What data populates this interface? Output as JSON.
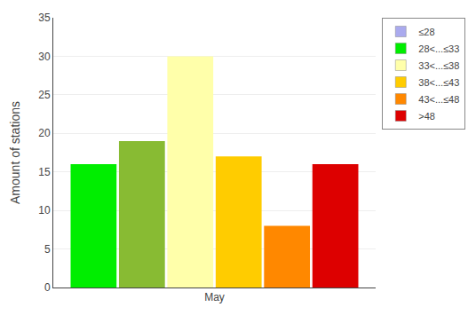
{
  "chart_data": {
    "type": "bar",
    "ylabel": "Amount of stations",
    "categories": [
      "May"
    ],
    "series": [
      {
        "color": "#00ee00",
        "values": [
          16
        ]
      },
      {
        "color": "#88bb33",
        "values": [
          19
        ]
      },
      {
        "color": "#ffffaa",
        "values": [
          30
        ]
      },
      {
        "color": "#ffcc00",
        "values": [
          17
        ]
      },
      {
        "color": "#ff8800",
        "values": [
          8
        ]
      },
      {
        "color": "#dd0000",
        "values": [
          16
        ]
      },
      {
        "name": "≤28",
        "color": "#aaaaee",
        "values": [
          null
        ]
      },
      {
        "name": "28<...≤33",
        "color": "#00ee00",
        "values": [
          null
        ]
      },
      {
        "name": "33<...≤38",
        "color": "#ffffaa",
        "values": [
          null
        ]
      },
      {
        "name": "38<...≤43",
        "color": "#ffcc00",
        "values": [
          null
        ]
      },
      {
        "name": "43<...≤48",
        "color": "#ff8800",
        "values": [
          null
        ]
      },
      {
        "name": ">48",
        "color": "#dd0000",
        "values": [
          null
        ]
      }
    ],
    "ylim": [
      0,
      35
    ],
    "yticks": [
      0,
      5,
      10,
      15,
      20,
      25,
      30,
      35
    ],
    "grid": true,
    "legend": "upper right"
  }
}
